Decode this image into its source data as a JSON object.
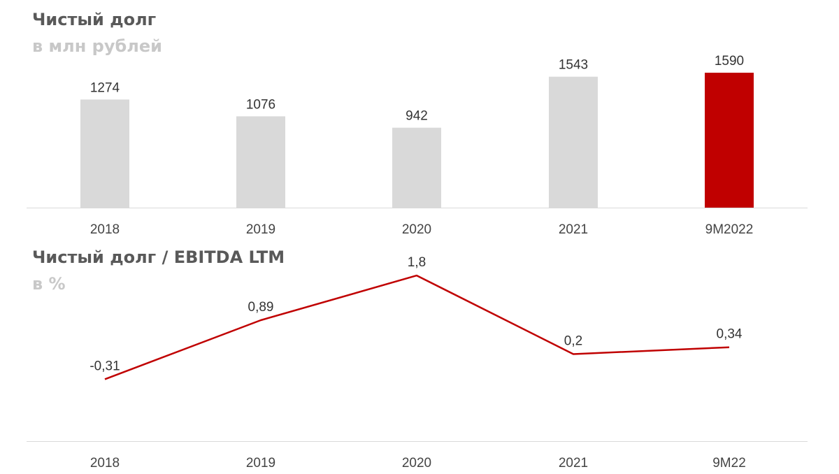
{
  "colors": {
    "bar_default": "#d9d9d9",
    "bar_highlight": "#c00000",
    "line": "#c00000",
    "axis": "#d9d9d9"
  },
  "chart_data": [
    {
      "type": "bar",
      "title": "Чистый долг",
      "subtitle": "в млн рублей",
      "categories": [
        "2018",
        "2019",
        "2020",
        "2021",
        "9M2022"
      ],
      "values": [
        1274,
        1076,
        942,
        1543,
        1590
      ],
      "data_labels": [
        "1274",
        "1076",
        "942",
        "1543",
        "1590"
      ],
      "highlight_index": 4,
      "ylim": [
        0,
        1600
      ],
      "grid": false,
      "legend": "none"
    },
    {
      "type": "line",
      "title": "Чистый долг / EBITDA LTM",
      "subtitle": "в %",
      "categories": [
        "2018",
        "2019",
        "2020",
        "2021",
        "9M22"
      ],
      "values": [
        -0.31,
        0.89,
        1.8,
        0.2,
        0.34
      ],
      "data_labels": [
        "-0,31",
        "0,89",
        "1,8",
        "0,2",
        "0,34"
      ],
      "ylim": [
        -0.5,
        2.0
      ],
      "grid": false,
      "legend": "none"
    }
  ]
}
